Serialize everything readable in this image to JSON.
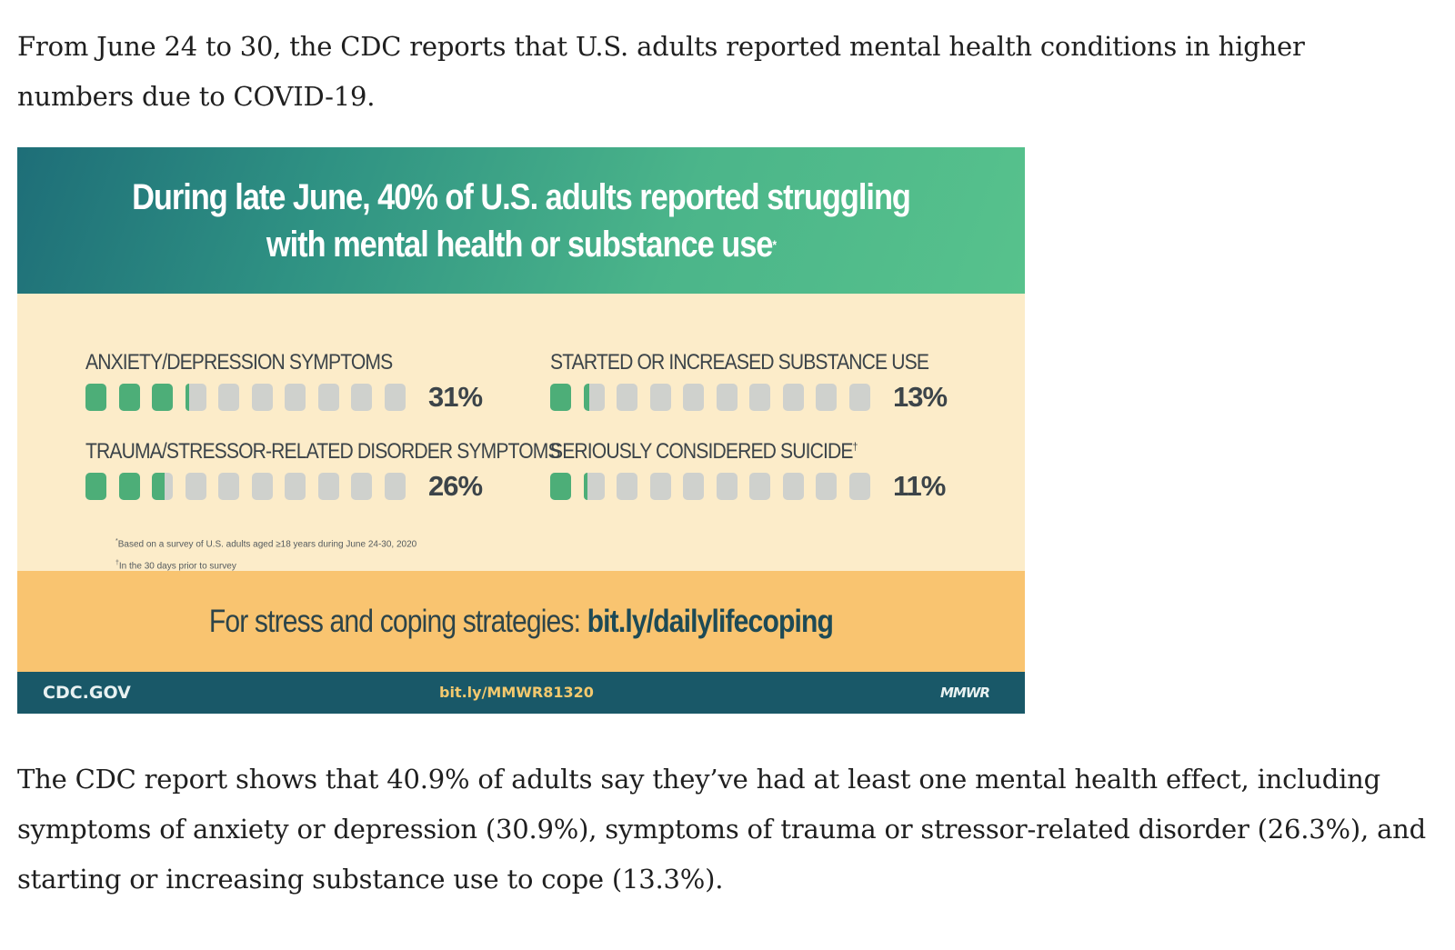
{
  "paragraph_1": "From June 24 to 30, the CDC reports that U.S. adults reported mental health conditions in higher numbers due to COVID-19.",
  "infographic": {
    "title_line1": "During late June, 40% of U.S. adults reported struggling",
    "title_line2": "with mental health or substance use",
    "title_mark": "*",
    "stats": [
      {
        "label": "ANXIETY/DEPRESSION SYMPTOMS",
        "mark": "",
        "value_text": "31%",
        "value": 31
      },
      {
        "label": "STARTED OR INCREASED SUBSTANCE USE",
        "mark": "",
        "value_text": "13%",
        "value": 13
      },
      {
        "label": "TRAUMA/STRESSOR-RELATED DISORDER SYMPTOMS",
        "mark": "",
        "value_text": "26%",
        "value": 26
      },
      {
        "label": "SERIOUSLY CONSIDERED SUICIDE",
        "mark": "†",
        "value_text": "11%",
        "value": 11
      }
    ],
    "bar_colors": {
      "filled": "#4dae78",
      "empty": "#cfd1cd"
    },
    "footnote_1_mark": "*",
    "footnote_1": "Based on a survey of U.S. adults aged ≥18 years during June 24-30, 2020",
    "footnote_2_mark": "†",
    "footnote_2": "In the 30 days prior to survey",
    "coping_prefix": "For stress and coping strategies: ",
    "coping_link": "bit.ly/dailylifecoping",
    "footer_left": "CDC.GOV",
    "footer_center": "bit.ly/MMWR81320",
    "footer_right": "MMWR"
  },
  "paragraph_2": "The CDC report shows that 40.9% of adults say they’ve had at least one mental health effect, including symptoms of anxiety or depression (30.9%), symptoms of trauma or stressor-related disorder (26.3%), and starting or increasing substance use to cope (13.3%)."
}
